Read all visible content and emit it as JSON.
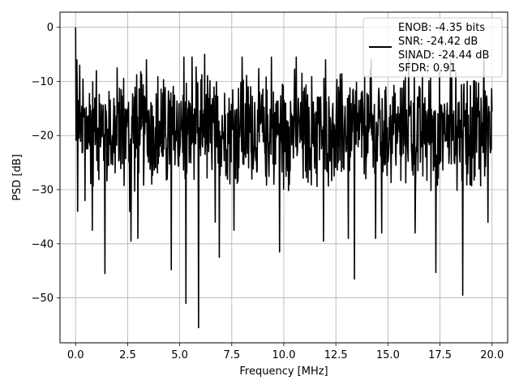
{
  "chart_data": {
    "type": "line",
    "title": "",
    "xlabel": "Frequency [MHz]",
    "ylabel": "PSD [dB]",
    "xlim": [
      -0.75,
      20.75
    ],
    "ylim": [
      -58.3,
      2.8
    ],
    "xticks": [
      0.0,
      2.5,
      5.0,
      7.5,
      10.0,
      12.5,
      15.0,
      17.5,
      20.0
    ],
    "xtick_labels": [
      "0.0",
      "2.5",
      "5.0",
      "7.5",
      "10.0",
      "12.5",
      "15.0",
      "17.5",
      "20.0"
    ],
    "yticks": [
      0,
      -10,
      -20,
      -30,
      -40,
      -50
    ],
    "ytick_labels": [
      "0",
      "−10",
      "−20",
      "−30",
      "−40",
      "−50"
    ],
    "grid": true,
    "legend_position": "upper right",
    "legend_lines": [
      "ENOB: -4.35 bits",
      "SNR: -24.42 dB",
      "SINAD: -24.44 dB",
      "SFDR: 0.91"
    ],
    "line_color": "#000000",
    "series": [
      {
        "x_start": 0.0,
        "x_end": 20.0,
        "n_points": 1024,
        "peaks": [
          [
            0.0,
            0.0
          ],
          [
            0.05,
            -6
          ],
          [
            0.2,
            -7
          ],
          [
            1.0,
            -8
          ],
          [
            2.0,
            -7.5
          ],
          [
            3.4,
            -6
          ],
          [
            5.2,
            -5.5
          ],
          [
            5.6,
            -5.5
          ],
          [
            6.2,
            -5
          ],
          [
            8.0,
            -5.5
          ],
          [
            9.4,
            -5.5
          ],
          [
            10.6,
            -5.5
          ],
          [
            12.0,
            -6
          ],
          [
            14.2,
            -6
          ],
          [
            16.0,
            -5.5
          ],
          [
            18.0,
            -6
          ],
          [
            19.6,
            -5.5
          ]
        ],
        "dips": [
          [
            0.1,
            -34
          ],
          [
            0.45,
            -32
          ],
          [
            0.8,
            -37.5
          ],
          [
            1.4,
            -45.5
          ],
          [
            2.6,
            -34
          ],
          [
            2.65,
            -39.5
          ],
          [
            3.0,
            -39
          ],
          [
            4.6,
            -44.8
          ],
          [
            5.3,
            -51
          ],
          [
            5.9,
            -55.5
          ],
          [
            6.7,
            -36
          ],
          [
            6.9,
            -42.5
          ],
          [
            7.6,
            -37.5
          ],
          [
            9.8,
            -41.5
          ],
          [
            11.9,
            -39.5
          ],
          [
            13.1,
            -39
          ],
          [
            13.4,
            -46.5
          ],
          [
            14.4,
            -39
          ],
          [
            14.7,
            -38
          ],
          [
            16.3,
            -38
          ],
          [
            17.3,
            -45.3
          ],
          [
            18.6,
            -49.5
          ],
          [
            19.8,
            -36
          ]
        ],
        "band_top_db": -11,
        "band_bottom_db": -27
      }
    ]
  }
}
